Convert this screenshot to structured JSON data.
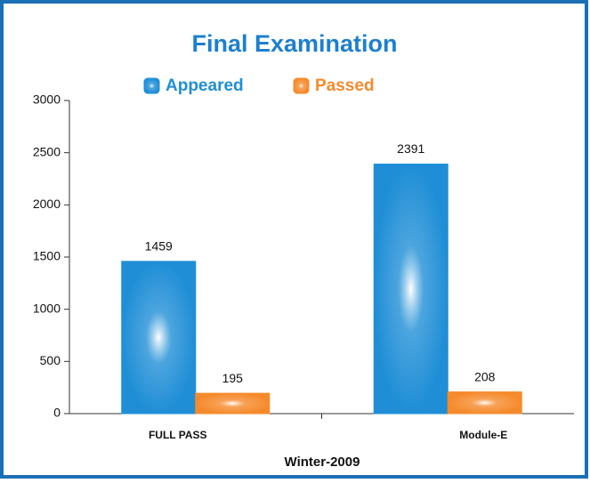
{
  "chart_data": {
    "type": "bar",
    "title": "Final Examination",
    "xlabel": "Winter-2009",
    "categories": [
      "FULL PASS",
      "Module-E"
    ],
    "series": [
      {
        "name": "Appeared",
        "color": "#1f8ed6",
        "values": [
          1459,
          2391
        ]
      },
      {
        "name": "Passed",
        "color": "#f58a2c",
        "values": [
          195,
          208
        ]
      }
    ],
    "ylim": [
      0,
      3000
    ],
    "yticks": [
      0,
      500,
      1000,
      1500,
      2000,
      2500,
      3000
    ]
  }
}
